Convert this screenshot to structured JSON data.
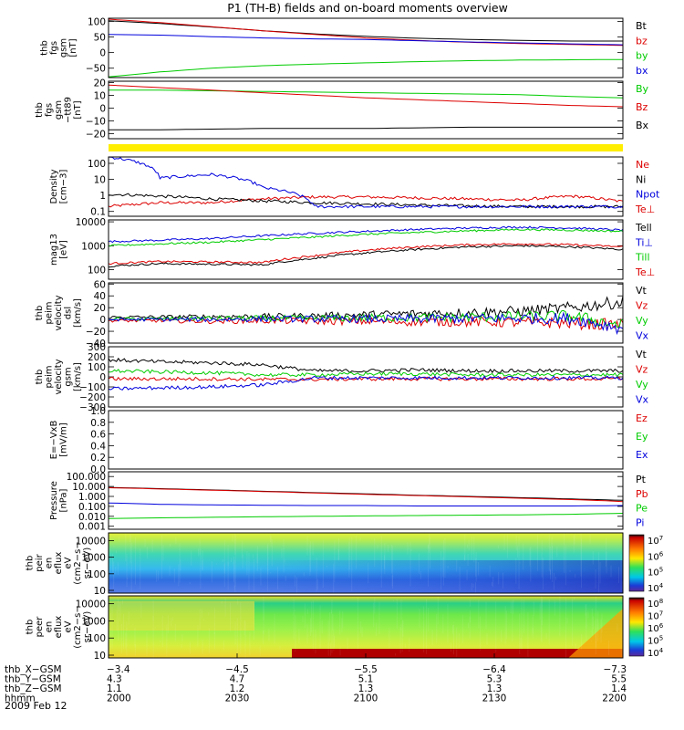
{
  "title": "P1 (TH-B) fields and on-board moments overview",
  "colors": {
    "black": "#000000",
    "red": "#dd0000",
    "green": "#00cc00",
    "blue": "#0000dd",
    "yellow": "#ffee00"
  },
  "chart_data": [
    {
      "type": "line",
      "ylabel": [
        "thb",
        "fgs",
        "gsm",
        "[nT]"
      ],
      "yticks": [
        "100",
        "50",
        "0",
        "−50"
      ],
      "ylim": [
        -80,
        110
      ],
      "series": [
        {
          "name": "Bt",
          "color": "black",
          "values": [
            102,
            93,
            82,
            70,
            60,
            52,
            46,
            42,
            39,
            37,
            37
          ]
        },
        {
          "name": "bz",
          "color": "red",
          "values": [
            107,
            96,
            83,
            70,
            58,
            47,
            39,
            33,
            29,
            26,
            23
          ]
        },
        {
          "name": "by",
          "color": "green",
          "values": [
            -78,
            -62,
            -50,
            -42,
            -37,
            -33,
            -29,
            -26,
            -24,
            -23,
            -22
          ]
        },
        {
          "name": "bx",
          "color": "blue",
          "values": [
            58,
            56,
            51,
            47,
            44,
            42,
            38,
            34,
            31,
            28,
            25
          ]
        }
      ]
    },
    {
      "type": "line",
      "ylabel": [
        "thb",
        "fgs",
        "gsm",
        "−tt89"
      ],
      "yunit": "[nT]",
      "yticks": [
        "20",
        "10",
        "0",
        "−10",
        "−20"
      ],
      "ylim": [
        -24,
        21
      ],
      "series": [
        {
          "name": "By",
          "color": "green",
          "values": [
            14,
            14,
            13.5,
            13,
            12.5,
            12,
            11.5,
            11,
            10.5,
            9,
            8
          ]
        },
        {
          "name": "Bz",
          "color": "red",
          "values": [
            18,
            16,
            14,
            12,
            10,
            8,
            6.5,
            5,
            3.5,
            2,
            1
          ]
        },
        {
          "name": "Bx",
          "color": "black",
          "values": [
            -17,
            -17,
            -16.5,
            -16,
            -16,
            -16,
            -15.5,
            -15,
            -15,
            -15,
            -15
          ]
        }
      ]
    },
    {
      "type": "bar",
      "color": "yellow"
    },
    {
      "type": "line",
      "ylabel": [
        "Density",
        "[cm−3]"
      ],
      "yticks": [
        "100",
        "10",
        "1",
        "0.1"
      ],
      "ylim": [
        0.05,
        250
      ],
      "log": true,
      "series": [
        {
          "name": "Ne",
          "color": "red",
          "values": [
            0.2,
            0.35,
            0.35,
            0.6,
            0.8,
            0.8,
            0.7,
            0.6,
            0.5,
            0.9,
            0.4
          ]
        },
        {
          "name": "Ni",
          "color": "black",
          "values": [
            1.2,
            0.9,
            0.6,
            0.45,
            0.35,
            0.3,
            0.25,
            0.22,
            0.2,
            0.2,
            0.2
          ]
        },
        {
          "name": "Npot",
          "color": "blue",
          "values": [
            250,
            12,
            20,
            3,
            0.2,
            0.2,
            0.2,
            0.2,
            0.2,
            0.2,
            0.2
          ]
        },
        {
          "name": "Te⊥",
          "color": "red",
          "values": []
        }
      ]
    },
    {
      "type": "line",
      "ylabel": [
        "mag13",
        "[eV]"
      ],
      "yticks": [
        "10000",
        "1000",
        "100"
      ],
      "ylim": [
        40,
        12000
      ],
      "log": true,
      "series": [
        {
          "name": "Tell",
          "color": "black",
          "values": [
            140,
            180,
            170,
            160,
            300,
            500,
            700,
            900,
            1000,
            900,
            700
          ]
        },
        {
          "name": "Ti⊥",
          "color": "blue",
          "values": [
            1500,
            1700,
            2000,
            2600,
            3300,
            4000,
            4800,
            5500,
            6000,
            5500,
            4500
          ]
        },
        {
          "name": "Till",
          "color": "green",
          "values": [
            1000,
            1200,
            1400,
            1800,
            2300,
            3000,
            3600,
            4200,
            4800,
            4500,
            4000
          ]
        },
        {
          "name": "Te⊥",
          "color": "red",
          "values": [
            180,
            220,
            210,
            200,
            380,
            650,
            900,
            1100,
            1200,
            1100,
            900
          ]
        }
      ]
    },
    {
      "type": "line",
      "ylabel": [
        "thb",
        "peim",
        "velocity",
        "dsl",
        "[km/s]"
      ],
      "yticks": [
        "60",
        "40",
        "20",
        "0",
        "−20",
        "−40"
      ],
      "ylim": [
        -40,
        62
      ],
      "series": [
        {
          "name": "Vt",
          "color": "black",
          "values": [
            4,
            4,
            5,
            5,
            6,
            8,
            10,
            12,
            14,
            20,
            30
          ]
        },
        {
          "name": "Vz",
          "color": "red",
          "values": [
            -2,
            -2,
            -3,
            -2,
            -3,
            -3,
            -4,
            -4,
            -5,
            -6,
            -10
          ]
        },
        {
          "name": "Vy",
          "color": "green",
          "values": [
            1,
            1,
            2,
            2,
            2,
            3,
            3,
            4,
            5,
            6,
            -10
          ]
        },
        {
          "name": "Vx",
          "color": "blue",
          "values": [
            0,
            0,
            0,
            1,
            1,
            1,
            1,
            2,
            2,
            2,
            -15
          ]
        }
      ]
    },
    {
      "type": "line",
      "ylabel": [
        "thb",
        "peim",
        "velocity",
        "gsm",
        "[km/s]"
      ],
      "yticks": [
        "300",
        "200",
        "100",
        "0",
        "−100",
        "−200",
        "−300"
      ],
      "ylim": [
        -300,
        300
      ],
      "series": [
        {
          "name": "Vt",
          "color": "black",
          "values": [
            170,
            150,
            140,
            120,
            60,
            60,
            70,
            60,
            60,
            60,
            60
          ]
        },
        {
          "name": "Vz",
          "color": "red",
          "values": [
            -20,
            -20,
            -20,
            -25,
            -25,
            -20,
            -20,
            -20,
            -20,
            -20,
            -20
          ]
        },
        {
          "name": "Vy",
          "color": "green",
          "values": [
            60,
            50,
            40,
            20,
            20,
            30,
            30,
            20,
            20,
            20,
            20
          ]
        },
        {
          "name": "Vx",
          "color": "blue",
          "values": [
            -120,
            -110,
            -100,
            -80,
            -10,
            -10,
            -10,
            -10,
            -10,
            -10,
            -10
          ]
        }
      ]
    },
    {
      "type": "line",
      "ylabel": [
        "E=−VxB",
        "[mV/m]"
      ],
      "yticks": [
        "1.0",
        "0.8",
        "0.6",
        "0.4",
        "0.2",
        "0.0"
      ],
      "ylim": [
        0,
        1
      ],
      "series": [
        {
          "name": "Ez",
          "color": "red",
          "values": []
        },
        {
          "name": "Ey",
          "color": "green",
          "values": []
        },
        {
          "name": "Ex",
          "color": "blue",
          "values": []
        }
      ]
    },
    {
      "type": "line",
      "ylabel": [
        "Pressure",
        "[nPa]"
      ],
      "yticks": [
        "100.000",
        "10.000",
        "1.000",
        "0.100",
        "0.010",
        "0.001"
      ],
      "ylim": [
        0.0005,
        300
      ],
      "log": true,
      "series": [
        {
          "name": "Pt",
          "color": "black",
          "values": [
            8,
            6,
            4.5,
            3.3,
            2.4,
            1.8,
            1.3,
            1.0,
            0.75,
            0.55,
            0.4
          ]
        },
        {
          "name": "Pb",
          "color": "red",
          "values": [
            7.5,
            5.6,
            4.2,
            3.1,
            2.2,
            1.6,
            1.2,
            0.9,
            0.65,
            0.48,
            0.3
          ]
        },
        {
          "name": "Pe",
          "color": "green",
          "values": [
            0.006,
            0.007,
            0.008,
            0.009,
            0.01,
            0.011,
            0.012,
            0.013,
            0.014,
            0.016,
            0.02
          ]
        },
        {
          "name": "Pi",
          "color": "blue",
          "values": [
            0.22,
            0.16,
            0.14,
            0.13,
            0.12,
            0.12,
            0.11,
            0.11,
            0.11,
            0.11,
            0.12
          ]
        }
      ]
    },
    {
      "type": "heatmap",
      "ylabel": [
        "thb",
        "peir",
        "en",
        "eflux",
        "eV",
        "(cm2−s−",
        "sr−eV)"
      ],
      "yticks": [
        "10000",
        "1000",
        "100",
        "10"
      ],
      "colorbar": [
        "10^7",
        "10^6",
        "10^5",
        "10^4"
      ]
    },
    {
      "type": "heatmap",
      "ylabel": [
        "thb",
        "peer",
        "en",
        "eflux",
        "eV",
        "(cm2−s−",
        "sr−eV)"
      ],
      "yticks": [
        "10000",
        "1000",
        "100",
        "10"
      ],
      "colorbar": [
        "10^8",
        "10^7",
        "10^6",
        "10^5",
        "10^4"
      ]
    }
  ],
  "xaxis": {
    "rows": [
      {
        "label": "thb_X−GSM",
        "values": [
          "−3.4",
          "−4.5",
          "−5.5",
          "−6.4",
          "−7.3"
        ]
      },
      {
        "label": "thb_Y−GSM",
        "values": [
          "4.3",
          "4.7",
          "5.1",
          "5.3",
          "5.5"
        ]
      },
      {
        "label": "thb_Z−GSM",
        "values": [
          "1.1",
          "1.2",
          "1.3",
          "1.3",
          "1.4"
        ]
      },
      {
        "label": "hhmm",
        "values": [
          "2000",
          "2030",
          "2100",
          "2130",
          "2200"
        ]
      }
    ],
    "date": "2009 Feb 12"
  }
}
